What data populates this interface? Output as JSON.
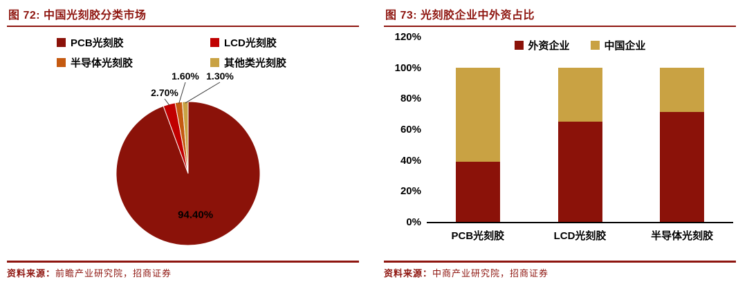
{
  "figures": [
    {
      "title": "图 72:  中国光刻胶分类市场",
      "source_label": "资料来源：",
      "source_text": "前瞻产业研究院，招商证券"
    },
    {
      "title": "图 73:  光刻胶企业中外资占比",
      "source_label": "资料来源：",
      "source_text": "中商产业研究院，招商证券"
    }
  ],
  "colors": {
    "accent_red": "#8E150F",
    "pcb_maroon": "#8B1209",
    "lcd_red": "#C00000",
    "semi_orange": "#C55A11",
    "other_gold": "#C9A243",
    "axis_black": "#000000",
    "label_black": "#000000"
  },
  "chart_data": [
    {
      "type": "pie",
      "title": "图 72: 中国光刻胶分类市场",
      "labels": [
        "PCB光刻胶",
        "LCD光刻胶",
        "半导体光刻胶",
        "其他类光刻胶"
      ],
      "values": [
        94.4,
        2.7,
        1.6,
        1.3
      ],
      "value_labels": [
        "94.40%",
        "2.70%",
        "1.60%",
        "1.30%"
      ],
      "colors": [
        "#8B1209",
        "#C00000",
        "#C55A11",
        "#C9A243"
      ],
      "start_angle_deg_from_top": 0,
      "direction": "clockwise",
      "legend_position": "top"
    },
    {
      "type": "bar",
      "stacked": true,
      "title": "图 73: 光刻胶企业中外资占比",
      "categories": [
        "PCB光刻胶",
        "LCD光刻胶",
        "半导体光刻胶"
      ],
      "series": [
        {
          "name": "外资企业",
          "color": "#8B1209",
          "values": [
            39,
            65,
            71
          ]
        },
        {
          "name": "中国企业",
          "color": "#C9A243",
          "values": [
            61,
            35,
            29
          ]
        }
      ],
      "ylim": [
        0,
        120
      ],
      "ytick_step": 20,
      "ytick_labels": [
        "0%",
        "20%",
        "40%",
        "60%",
        "80%",
        "100%",
        "120%"
      ],
      "grid": false,
      "legend_position": "top-inside"
    }
  ]
}
